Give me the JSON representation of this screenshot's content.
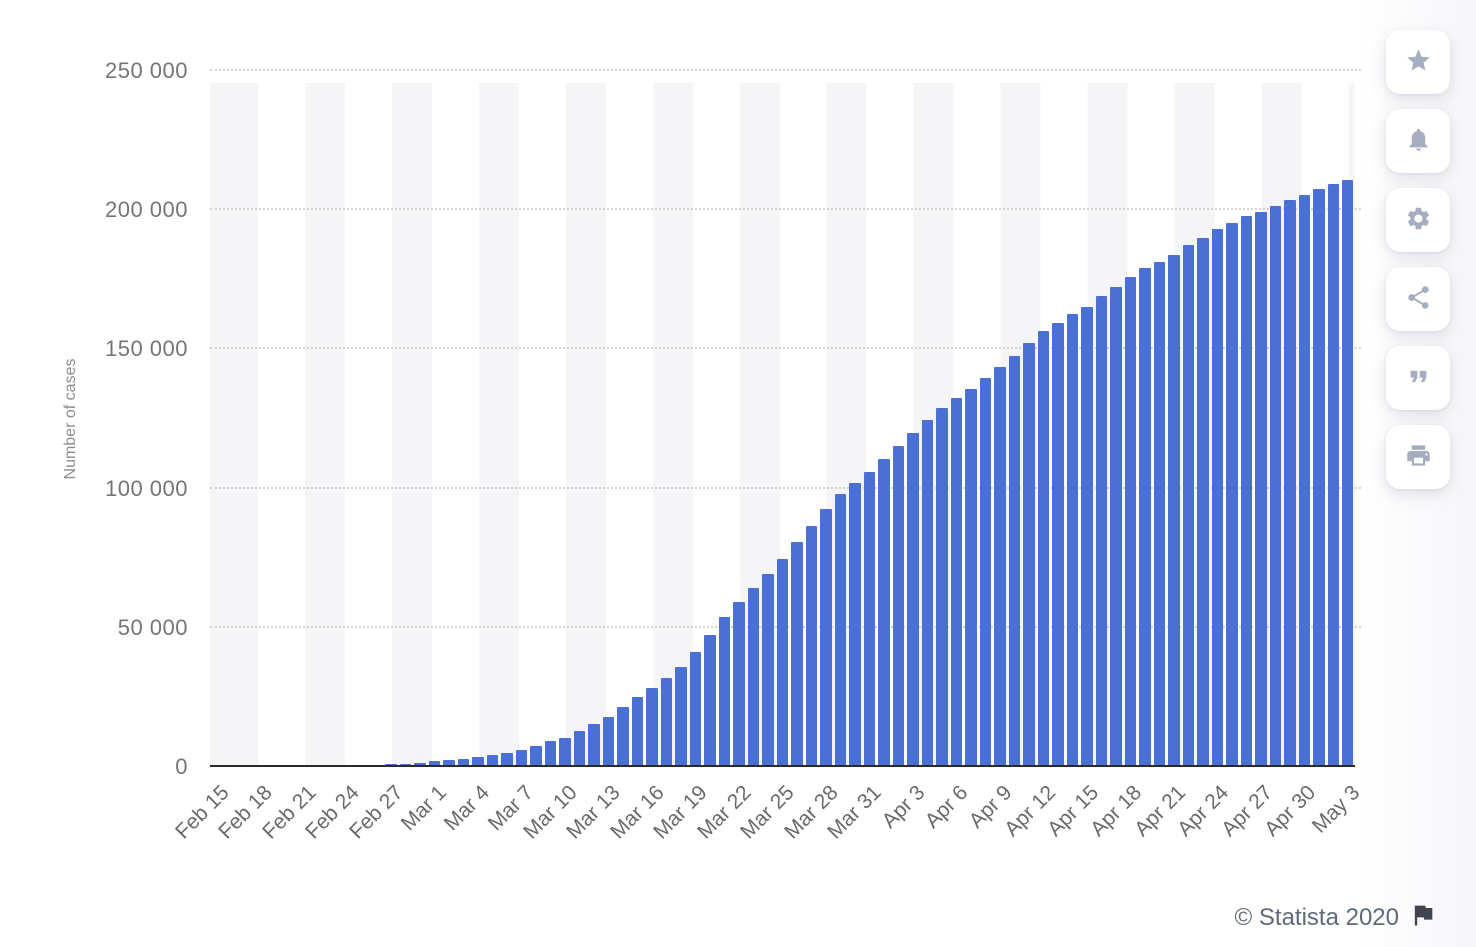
{
  "chart_data": {
    "type": "bar",
    "title": "",
    "xlabel": "",
    "ylabel": "Number of cases",
    "ylim": [
      0,
      250000
    ],
    "yticks": [
      0,
      50000,
      100000,
      150000,
      200000,
      250000
    ],
    "ytick_labels": [
      "0",
      "50 000",
      "100 000",
      "150 000",
      "200 000",
      "250 000"
    ],
    "label_every_n_bars": 3,
    "xtick_labels": [
      "Feb 15",
      "Feb 18",
      "Feb 21",
      "Feb 24",
      "Feb 27",
      "Mar 1",
      "Mar 4",
      "Mar 7",
      "Mar 10",
      "Mar 13",
      "Mar 16",
      "Mar 19",
      "Mar 22",
      "Mar 25",
      "Mar 28",
      "Mar 31",
      "Apr 3",
      "Apr 6",
      "Apr 9",
      "Apr 12",
      "Apr 15",
      "Apr 18",
      "Apr 21",
      "Apr 24",
      "Apr 27",
      "Apr 30",
      "May 3"
    ],
    "categories": [
      "Feb 15",
      "Feb 16",
      "Feb 17",
      "Feb 18",
      "Feb 19",
      "Feb 20",
      "Feb 21",
      "Feb 22",
      "Feb 23",
      "Feb 24",
      "Feb 25",
      "Feb 26",
      "Feb 27",
      "Feb 28",
      "Feb 29",
      "Mar 1",
      "Mar 2",
      "Mar 3",
      "Mar 4",
      "Mar 5",
      "Mar 6",
      "Mar 7",
      "Mar 8",
      "Mar 9",
      "Mar 10",
      "Mar 11",
      "Mar 12",
      "Mar 13",
      "Mar 14",
      "Mar 15",
      "Mar 16",
      "Mar 17",
      "Mar 18",
      "Mar 19",
      "Mar 20",
      "Mar 21",
      "Mar 22",
      "Mar 23",
      "Mar 24",
      "Mar 25",
      "Mar 26",
      "Mar 27",
      "Mar 28",
      "Mar 29",
      "Mar 30",
      "Mar 31",
      "Apr 1",
      "Apr 2",
      "Apr 3",
      "Apr 4",
      "Apr 5",
      "Apr 6",
      "Apr 7",
      "Apr 8",
      "Apr 9",
      "Apr 10",
      "Apr 11",
      "Apr 12",
      "Apr 13",
      "Apr 14",
      "Apr 15",
      "Apr 16",
      "Apr 17",
      "Apr 18",
      "Apr 19",
      "Apr 20",
      "Apr 21",
      "Apr 22",
      "Apr 23",
      "Apr 24",
      "Apr 25",
      "Apr 26",
      "Apr 27",
      "Apr 28",
      "Apr 29",
      "Apr 30",
      "May 1",
      "May 2",
      "May 3"
    ],
    "values": [
      3,
      3,
      3,
      3,
      3,
      4,
      21,
      79,
      157,
      229,
      323,
      470,
      655,
      889,
      1128,
      1701,
      2036,
      2502,
      3089,
      3858,
      4636,
      5883,
      7375,
      9172,
      10149,
      12462,
      15113,
      17660,
      21157,
      24747,
      27980,
      31506,
      35713,
      41035,
      47021,
      53578,
      59138,
      63927,
      69176,
      74386,
      80539,
      86498,
      92472,
      97689,
      101739,
      105792,
      110574,
      115242,
      119827,
      124632,
      128948,
      132547,
      135586,
      139422,
      143626,
      147577,
      152271,
      156363,
      159516,
      162488,
      165155,
      168941,
      172434,
      175925,
      178972,
      181228,
      183957,
      187327,
      189973,
      192994,
      195351,
      197675,
      199414,
      201505,
      203591,
      205463,
      207428,
      209328,
      210717
    ],
    "grid": "horizontal-dotted",
    "legend": "none",
    "bar_color": "#4a6fd5",
    "stripe_color": "#f5f5f7",
    "gridline_color": "#d3d3d3",
    "axis_line_color": "#2b2b2b",
    "tick_label_color": "#6a6a6a"
  },
  "toolbar": {
    "icon_color": "#a6adc0",
    "items": [
      {
        "name": "favorite",
        "icon": "star-icon"
      },
      {
        "name": "notifications",
        "icon": "bell-icon"
      },
      {
        "name": "settings",
        "icon": "gear-icon"
      },
      {
        "name": "share",
        "icon": "share-icon"
      },
      {
        "name": "cite",
        "icon": "quote-icon"
      },
      {
        "name": "print",
        "icon": "printer-icon"
      }
    ]
  },
  "footer": {
    "copyright": "© Statista 2020",
    "flag": {
      "icon": "flag-icon",
      "color": "#40454d"
    }
  }
}
